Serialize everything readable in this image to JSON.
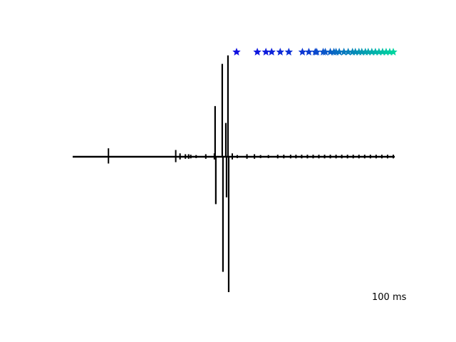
{
  "chart_data": {
    "type": "line",
    "title": "",
    "xlabel": "",
    "ylabel": "",
    "axes_visible": false,
    "grid": false,
    "legend": "none",
    "xlim": [
      0,
      900
    ],
    "ylim": [
      -1.0,
      0.8
    ],
    "scale_bar": {
      "label": "100 ms",
      "value": 100
    },
    "series": [
      {
        "type": "line",
        "color": "#000000",
        "baseline": 0,
        "spikes": [
          {
            "x": 100,
            "amp": 0.05
          },
          {
            "x": 288,
            "amp": 0.04
          },
          {
            "x": 300,
            "amp": 0.02
          },
          {
            "x": 315,
            "amp": 0.015
          },
          {
            "x": 324,
            "amp": 0.015
          },
          {
            "x": 330,
            "amp": 0.012
          },
          {
            "x": 345,
            "amp": 0.01
          },
          {
            "x": 372,
            "amp": 0.015
          },
          {
            "x": 396,
            "amp": 0.02
          },
          {
            "x": 398,
            "amp": 0.3
          },
          {
            "x": 400,
            "amp": -0.35
          },
          {
            "x": 418,
            "amp": 0.55
          },
          {
            "x": 420,
            "amp": -0.85
          },
          {
            "x": 428,
            "amp": 0.2
          },
          {
            "x": 430,
            "amp": -0.3
          },
          {
            "x": 434,
            "amp": 0.6
          },
          {
            "x": 436,
            "amp": -1.0
          },
          {
            "x": 446,
            "amp": 0.02
          },
          {
            "x": 460,
            "amp": 0.01
          },
          {
            "x": 487,
            "amp": 0.015
          },
          {
            "x": 508,
            "amp": 0.015
          },
          {
            "x": 525,
            "amp": 0.01
          },
          {
            "x": 547,
            "amp": 0.01
          },
          {
            "x": 573,
            "amp": 0.012
          },
          {
            "x": 590,
            "amp": 0.012
          },
          {
            "x": 609,
            "amp": 0.012
          },
          {
            "x": 624,
            "amp": 0.012
          },
          {
            "x": 640,
            "amp": 0.012
          },
          {
            "x": 656,
            "amp": 0.012
          },
          {
            "x": 672,
            "amp": 0.012
          },
          {
            "x": 688,
            "amp": 0.012
          },
          {
            "x": 704,
            "amp": 0.012
          },
          {
            "x": 720,
            "amp": 0.012
          },
          {
            "x": 736,
            "amp": 0.012
          },
          {
            "x": 752,
            "amp": 0.012
          },
          {
            "x": 768,
            "amp": 0.012
          },
          {
            "x": 784,
            "amp": 0.012
          },
          {
            "x": 800,
            "amp": 0.012
          },
          {
            "x": 816,
            "amp": 0.012
          },
          {
            "x": 832,
            "amp": 0.012
          },
          {
            "x": 848,
            "amp": 0.012
          },
          {
            "x": 864,
            "amp": 0.012
          },
          {
            "x": 880,
            "amp": 0.012
          },
          {
            "x": 896,
            "amp": 0.012
          }
        ]
      },
      {
        "type": "scatter",
        "marker": "star",
        "y": 0.62,
        "color_start": "#1010e0",
        "color_end": "#00d4a0",
        "x": [
          458,
          516,
          540,
          556,
          580,
          604,
          642,
          660,
          678,
          682,
          700,
          706,
          720,
          730,
          736,
          745,
          758,
          770,
          782,
          790,
          800,
          808,
          818,
          826,
          836,
          846,
          856,
          866,
          876,
          886,
          896
        ]
      }
    ]
  }
}
